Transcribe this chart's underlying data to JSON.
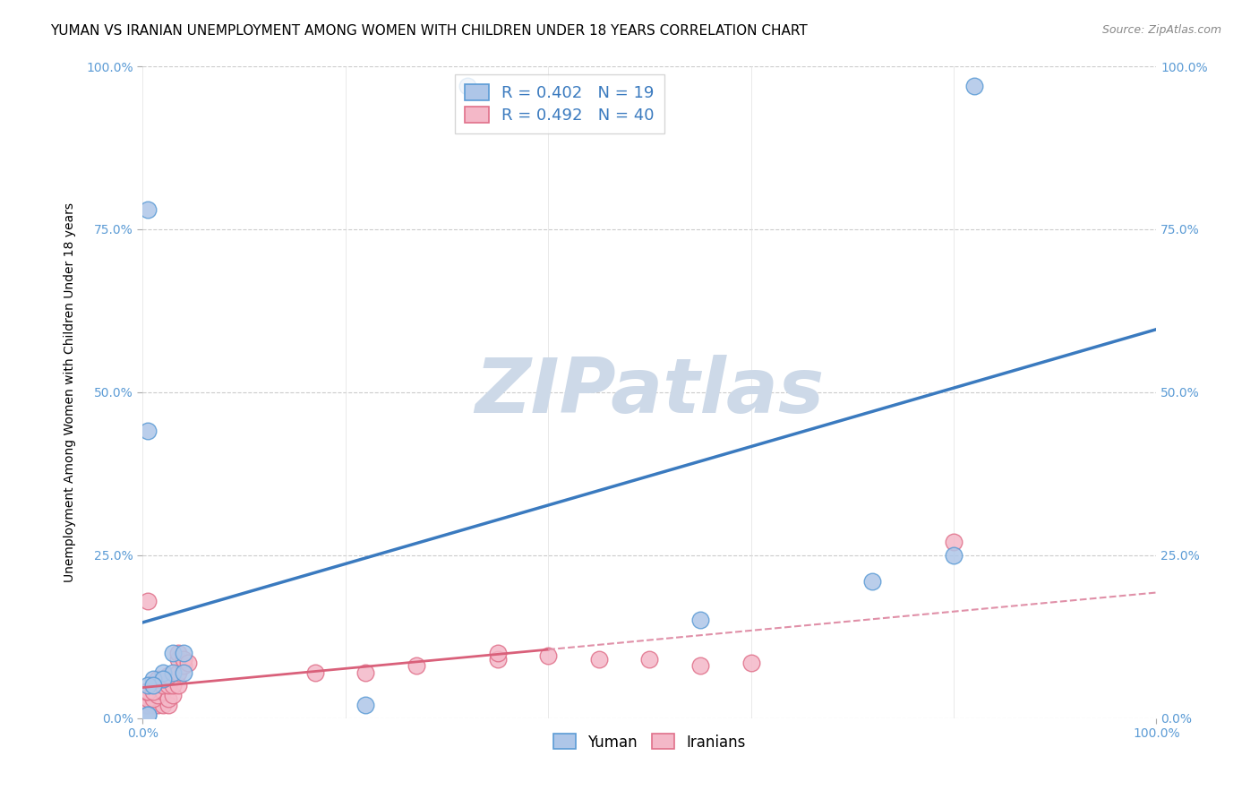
{
  "title": "YUMAN VS IRANIAN UNEMPLOYMENT AMONG WOMEN WITH CHILDREN UNDER 18 YEARS CORRELATION CHART",
  "source": "Source: ZipAtlas.com",
  "ylabel": "Unemployment Among Women with Children Under 18 years",
  "xlim": [
    0,
    100
  ],
  "ylim": [
    0,
    100
  ],
  "xtick_positions": [
    0,
    100
  ],
  "xtick_labels": [
    "0.0%",
    "100.0%"
  ],
  "ytick_positions": [
    0,
    25,
    50,
    75,
    100
  ],
  "ytick_labels": [
    "0.0%",
    "25.0%",
    "50.0%",
    "75.0%",
    "100.0%"
  ],
  "yuman_points": [
    [
      2,
      7
    ],
    [
      3,
      7
    ],
    [
      4,
      7
    ],
    [
      1,
      6
    ],
    [
      2,
      6
    ],
    [
      0.5,
      5
    ],
    [
      1,
      5
    ],
    [
      3,
      10
    ],
    [
      4,
      10
    ],
    [
      0.5,
      78
    ],
    [
      32,
      97
    ],
    [
      82,
      97
    ],
    [
      0.5,
      44
    ],
    [
      55,
      15
    ],
    [
      80,
      25
    ],
    [
      72,
      21
    ],
    [
      22,
      2
    ],
    [
      0.5,
      0.5
    ],
    [
      0.5,
      0.5
    ]
  ],
  "iranian_points": [
    [
      0.3,
      2
    ],
    [
      0.5,
      2
    ],
    [
      1,
      2
    ],
    [
      1.5,
      2
    ],
    [
      2,
      2
    ],
    [
      2.5,
      2
    ],
    [
      0.5,
      3
    ],
    [
      1,
      3
    ],
    [
      1.5,
      3.5
    ],
    [
      2,
      4
    ],
    [
      2.5,
      3
    ],
    [
      3,
      3.5
    ],
    [
      0.3,
      4
    ],
    [
      0.5,
      4
    ],
    [
      1,
      4
    ],
    [
      2,
      5
    ],
    [
      2.5,
      5
    ],
    [
      3,
      5
    ],
    [
      3.5,
      5
    ],
    [
      1.5,
      6
    ],
    [
      2,
      6
    ],
    [
      2.5,
      6.5
    ],
    [
      3.5,
      7
    ],
    [
      4,
      8
    ],
    [
      3.5,
      9
    ],
    [
      3.5,
      10
    ],
    [
      4,
      9
    ],
    [
      4.5,
      8.5
    ],
    [
      17,
      7
    ],
    [
      22,
      7
    ],
    [
      27,
      8
    ],
    [
      35,
      9
    ],
    [
      35,
      10
    ],
    [
      40,
      9.5
    ],
    [
      45,
      9
    ],
    [
      50,
      9
    ],
    [
      55,
      8
    ],
    [
      60,
      8.5
    ],
    [
      80,
      27
    ],
    [
      0.5,
      18
    ]
  ],
  "yuman_color": "#aec6e8",
  "yuman_edge_color": "#5b9bd5",
  "iranian_color": "#f4b8c8",
  "iranian_edge_color": "#e0708a",
  "yuman_R": 0.402,
  "yuman_N": 19,
  "iranian_R": 0.492,
  "iranian_N": 40,
  "yuman_line_color": "#3a7abf",
  "iranian_solid_color": "#d9607a",
  "iranian_dash_color": "#e090a8",
  "watermark_text": "ZIPatlas",
  "watermark_color": "#cdd9e8",
  "title_fontsize": 11,
  "axis_label_fontsize": 10,
  "tick_fontsize": 10,
  "legend_fontsize": 13,
  "source_fontsize": 9
}
